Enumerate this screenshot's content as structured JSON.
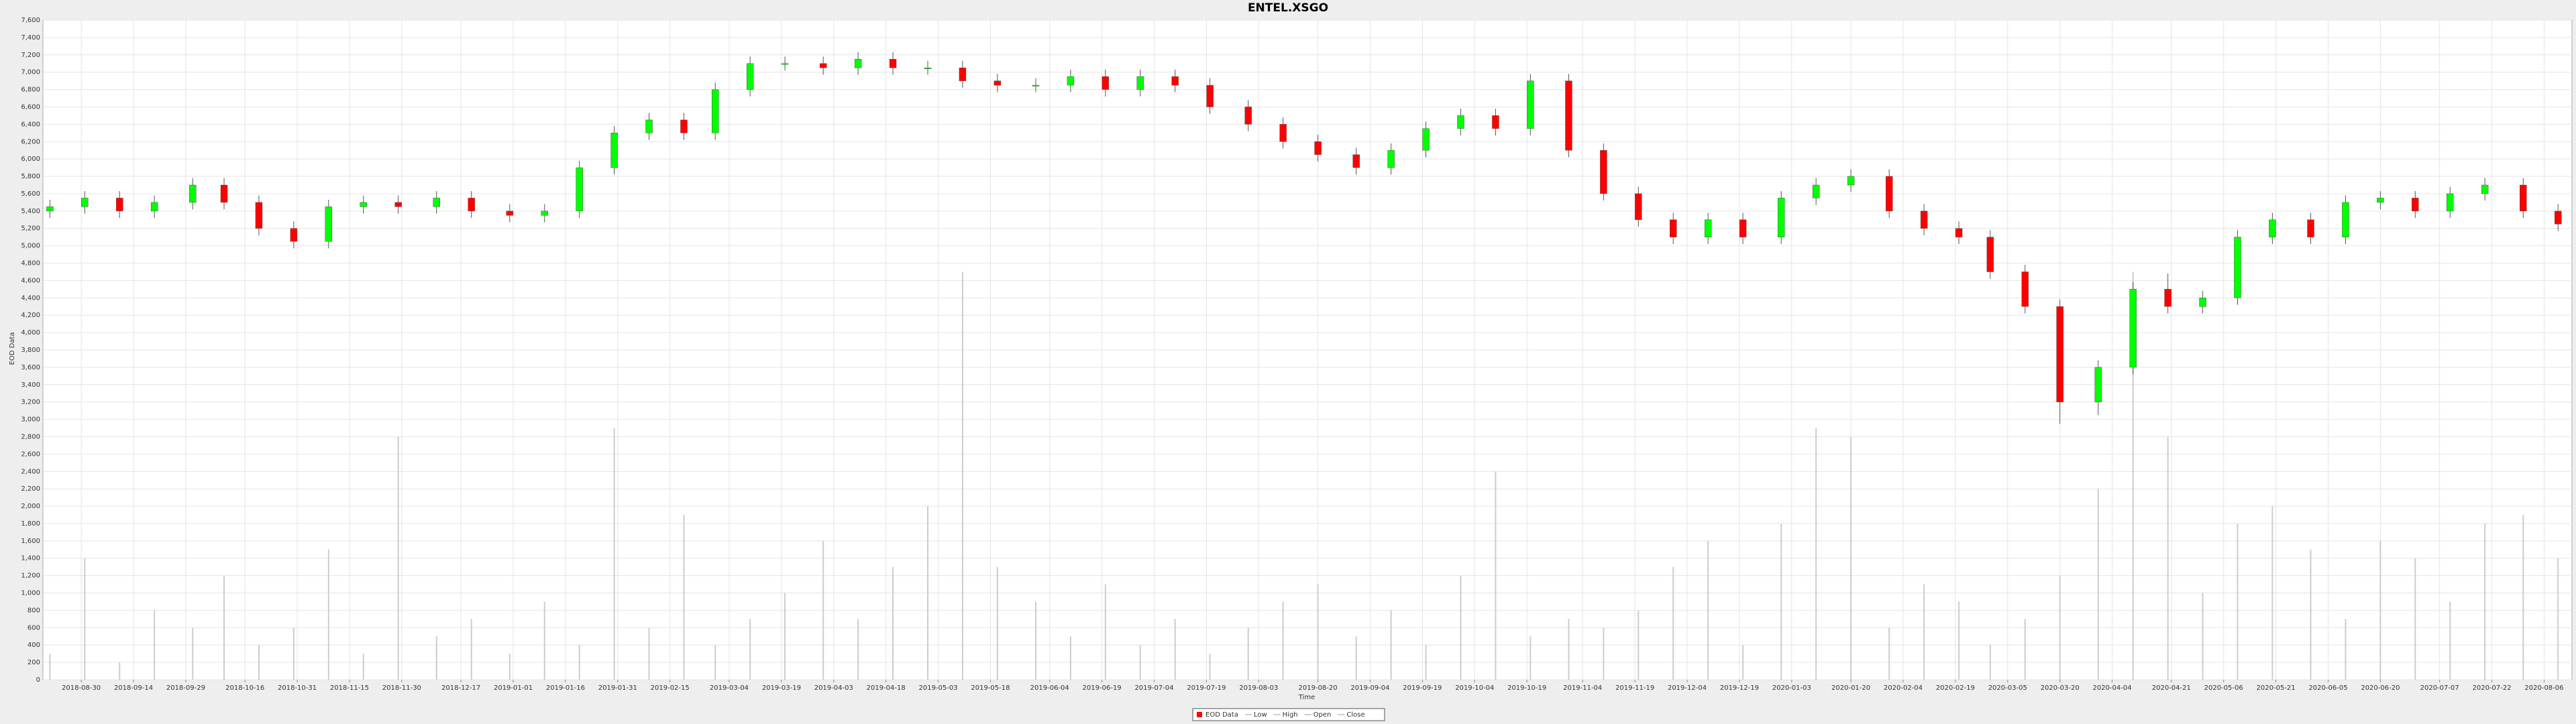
{
  "chart_data": {
    "type": "candlestick",
    "title": "ENTEL.XSGO",
    "x_label": "Time",
    "y_label": "EOD Data",
    "legend": [
      "EOD Data",
      "Low",
      "High",
      "Open",
      "Close"
    ],
    "up_color": "#00ff00",
    "down_color": "#ff0000",
    "volume_color": "#cccccc",
    "grid": true,
    "x": [
      "2018-08-21",
      "2018-08-31",
      "2018-09-10",
      "2018-09-20",
      "2018-10-01",
      "2018-10-10",
      "2018-10-20",
      "2018-10-30",
      "2018-11-09",
      "2018-11-19",
      "2018-11-29",
      "2018-12-10",
      "2018-12-20",
      "2018-12-31",
      "2019-01-10",
      "2019-01-20",
      "2019-01-30",
      "2019-02-09",
      "2019-02-19",
      "2019-02-28",
      "2019-03-10",
      "2019-03-20",
      "2019-03-31",
      "2019-04-10",
      "2019-04-20",
      "2019-04-30",
      "2019-05-10",
      "2019-05-20",
      "2019-05-31",
      "2019-06-10",
      "2019-06-20",
      "2019-06-30",
      "2019-07-10",
      "2019-07-20",
      "2019-07-31",
      "2019-08-10",
      "2019-08-20",
      "2019-08-31",
      "2019-09-10",
      "2019-09-20",
      "2019-09-30",
      "2019-10-10",
      "2019-10-20",
      "2019-10-31",
      "2019-11-10",
      "2019-11-20",
      "2019-11-30",
      "2019-12-10",
      "2019-12-20",
      "2019-12-31",
      "2020-01-10",
      "2020-01-20",
      "2020-01-31",
      "2020-02-10",
      "2020-02-20",
      "2020-02-29",
      "2020-03-10",
      "2020-03-20",
      "2020-03-31",
      "2020-04-10",
      "2020-04-20",
      "2020-04-30",
      "2020-05-10",
      "2020-05-20",
      "2020-05-31",
      "2020-06-10",
      "2020-06-20",
      "2020-06-30",
      "2020-07-10",
      "2020-07-20",
      "2020-07-31",
      "2020-08-10"
    ],
    "open": [
      5400,
      5450,
      5550,
      5400,
      5500,
      5700,
      5500,
      5200,
      5050,
      5450,
      5500,
      5450,
      5550,
      5400,
      5350,
      5400,
      5900,
      6300,
      6450,
      6300,
      6800,
      7100,
      7100,
      7050,
      7150,
      7050,
      7050,
      6900,
      6850,
      6850,
      6950,
      6800,
      6950,
      6850,
      6600,
      6400,
      6200,
      6050,
      5900,
      6100,
      6350,
      6500,
      6350,
      6900,
      6100,
      5600,
      5300,
      5100,
      5300,
      5100,
      5550,
      5700,
      5800,
      5400,
      5200,
      5100,
      4700,
      4300,
      3200,
      3600,
      4500,
      4300,
      4400,
      5100,
      5300,
      5100,
      5500,
      5550,
      5400,
      5600,
      5700,
      5400
    ],
    "high": [
      5530,
      5630,
      5630,
      5580,
      5780,
      5780,
      5580,
      5280,
      5530,
      5580,
      5580,
      5630,
      5630,
      5480,
      5480,
      5980,
      6380,
      6530,
      6530,
      6880,
      7180,
      7180,
      7180,
      7230,
      7230,
      7130,
      7130,
      6980,
      6930,
      7030,
      7030,
      7030,
      7030,
      6930,
      6680,
      6480,
      6280,
      6130,
      6180,
      6430,
      6580,
      6580,
      6980,
      6980,
      6180,
      5680,
      5380,
      5380,
      5380,
      5630,
      5780,
      5880,
      5880,
      5480,
      5280,
      5180,
      4780,
      4380,
      3680,
      4580,
      4680,
      4480,
      5180,
      5380,
      5380,
      5580,
      5630,
      5630,
      5680,
      5780,
      5780,
      5480
    ],
    "low": [
      5320,
      5370,
      5320,
      5320,
      5420,
      5420,
      5120,
      4970,
      4970,
      5370,
      5370,
      5370,
      5320,
      5270,
      5270,
      5320,
      5820,
      6220,
      6220,
      6220,
      6720,
      7020,
      6970,
      6970,
      6970,
      6970,
      6820,
      6770,
      6770,
      6770,
      6720,
      6720,
      6770,
      6520,
      6320,
      6120,
      5970,
      5820,
      5820,
      6020,
      6270,
      6270,
      6270,
      6020,
      5520,
      5220,
      5020,
      5020,
      5020,
      5020,
      5470,
      5620,
      5320,
      5120,
      5020,
      4620,
      4220,
      2950,
      3050,
      3520,
      4220,
      4220,
      4320,
      5020,
      5020,
      5020,
      5420,
      5320,
      5320,
      5520,
      5320,
      5170
    ],
    "close": [
      5450,
      5550,
      5400,
      5500,
      5700,
      5500,
      5200,
      5050,
      5450,
      5500,
      5450,
      5550,
      5400,
      5350,
      5400,
      5900,
      6300,
      6450,
      6300,
      6800,
      7100,
      7100,
      7050,
      7150,
      7050,
      7050,
      6900,
      6850,
      6850,
      6950,
      6800,
      6950,
      6850,
      6600,
      6400,
      6200,
      6050,
      5900,
      6100,
      6350,
      6500,
      6350,
      6900,
      6100,
      5600,
      5300,
      5100,
      5300,
      5100,
      5550,
      5700,
      5800,
      5400,
      5200,
      5100,
      4700,
      4300,
      3200,
      3600,
      4500,
      4300,
      4400,
      5100,
      5300,
      5100,
      5500,
      5550,
      5400,
      5600,
      5700,
      5400,
      5250
    ],
    "volume": [
      300,
      1400,
      200,
      800,
      600,
      1200,
      400,
      600,
      1500,
      300,
      2800,
      500,
      700,
      300,
      900,
      400,
      2900,
      600,
      1900,
      400,
      700,
      1000,
      1600,
      700,
      1300,
      2000,
      4700,
      1300,
      900,
      500,
      1100,
      400,
      700,
      300,
      600,
      900,
      1100,
      500,
      800,
      400,
      1200,
      2400,
      500,
      700,
      600,
      800,
      1300,
      1600,
      400,
      1800,
      2900,
      2800,
      600,
      1100,
      900,
      400,
      700,
      1200,
      2200,
      4700,
      2800,
      1000,
      1800,
      2000,
      1500,
      700,
      1600,
      1400,
      900,
      1800,
      1900,
      1400
    ],
    "xlim": [
      "2018-08-19",
      "2020-08-14"
    ],
    "xticks": [
      "2018-08-30",
      "2018-09-14",
      "2018-09-29",
      "2018-10-16",
      "2018-10-31",
      "2018-11-15",
      "2018-11-30",
      "2018-12-17",
      "2019-01-01",
      "2019-01-16",
      "2019-01-31",
      "2019-02-15",
      "2019-03-04",
      "2019-03-19",
      "2019-04-03",
      "2019-04-18",
      "2019-05-03",
      "2019-05-18",
      "2019-06-04",
      "2019-06-19",
      "2019-07-04",
      "2019-07-19",
      "2019-08-03",
      "2019-08-20",
      "2019-09-04",
      "2019-09-19",
      "2019-10-04",
      "2019-10-19",
      "2019-11-04",
      "2019-11-19",
      "2019-12-04",
      "2019-12-19",
      "2020-01-03",
      "2020-01-20",
      "2020-02-04",
      "2020-02-19",
      "2020-03-05",
      "2020-03-20",
      "2020-04-04",
      "2020-04-21",
      "2020-05-06",
      "2020-05-21",
      "2020-06-05",
      "2020-06-20",
      "2020-07-07",
      "2020-07-22",
      "2020-08-06"
    ],
    "ylim": [
      0,
      7600
    ],
    "yticks": [
      0,
      200,
      400,
      600,
      800,
      {
        "value": 1000,
        "label": "1,000"
      },
      {
        "value": 1200,
        "label": "1,200"
      },
      {
        "value": 1400,
        "label": "1,400"
      },
      {
        "value": 1600,
        "label": "1,600"
      },
      {
        "value": 1800,
        "label": "1,800"
      },
      {
        "value": 2000,
        "label": "2,000"
      },
      {
        "value": 2200,
        "label": "2,200"
      },
      {
        "value": 2400,
        "label": "2,400"
      },
      {
        "value": 2600,
        "label": "2,600"
      },
      {
        "value": 2800,
        "label": "2,800"
      },
      {
        "value": 3000,
        "label": "3,000"
      },
      {
        "value": 3200,
        "label": "3,200"
      },
      {
        "value": 3400,
        "label": "3,400"
      },
      {
        "value": 3600,
        "label": "3,600"
      },
      {
        "value": 3800,
        "label": "3,800"
      },
      {
        "value": 4000,
        "label": "4,000"
      },
      {
        "value": 4200,
        "label": "4,200"
      },
      {
        "value": 4400,
        "label": "4,400"
      },
      {
        "value": 4600,
        "label": "4,600"
      },
      {
        "value": 4800,
        "label": "4,800"
      },
      {
        "value": 5000,
        "label": "5,000"
      },
      {
        "value": 5200,
        "label": "5,200"
      },
      {
        "value": 5400,
        "label": "5,400"
      },
      {
        "value": 5600,
        "label": "5,600"
      },
      {
        "value": 5800,
        "label": "5,800"
      },
      {
        "value": 6000,
        "label": "6,000"
      },
      {
        "value": 6200,
        "label": "6,200"
      },
      {
        "value": 6400,
        "label": "6,400"
      },
      {
        "value": 6600,
        "label": "6,600"
      },
      {
        "value": 6800,
        "label": "6,800"
      },
      {
        "value": 7000,
        "label": "7,000"
      },
      {
        "value": 7200,
        "label": "7,200"
      },
      {
        "value": 7400,
        "label": "7,400"
      },
      {
        "value": 7600,
        "label": "7,600"
      }
    ]
  }
}
